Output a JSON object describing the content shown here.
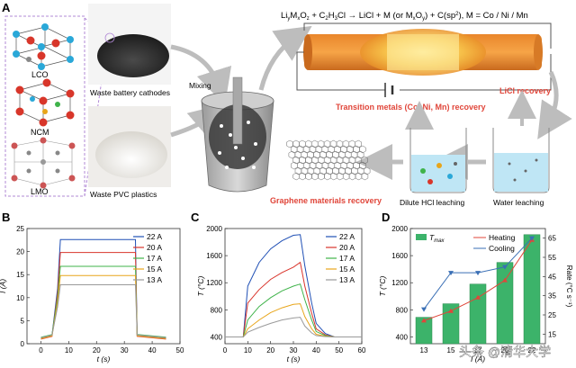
{
  "panel_letters": {
    "a": "A",
    "b": "B",
    "c": "C",
    "d": "D"
  },
  "reaction": {
    "lhs": "Li",
    "m_sub": "y",
    "o_sub": "z",
    "plus1": "+ C",
    "h_sub": "3",
    "cl_part": "Cl",
    "rhs": "LiCl + M (or M",
    "rhs_o": "O",
    "rhs_end": ") + C(sp",
    "sp2": "2",
    "metals": "), M = Co / Ni / Mn"
  },
  "structures": [
    "LCO",
    "NCM",
    "LMO"
  ],
  "captions": {
    "cathodes": "Waste battery cathodes",
    "pvc": "Waste PVC plastics",
    "mixing": "Mixing",
    "tm_recovery": "Transition metals (Co, Ni, Mn) recovery",
    "licl_recovery": "LiCl recovery",
    "graphene": "Graphene materials recovery",
    "hcl": "Dilute HCl leaching",
    "water": "Water leaching"
  },
  "colors": {
    "red_text": "#e0463a",
    "heating": "#e0463a",
    "cooling": "#3a6fb5",
    "bar": "#3cb36a"
  },
  "chart_data": [
    {
      "type": "line",
      "panel": "B",
      "xlabel": "t (s)",
      "ylabel": "I (A)",
      "xlim": [
        -5,
        50
      ],
      "ylim": [
        0,
        25
      ],
      "xticks": [
        0,
        10,
        20,
        30,
        40,
        50
      ],
      "yticks": [
        0,
        5,
        10,
        15,
        20,
        25
      ],
      "legend": "top-right",
      "series": [
        {
          "name": "22 A",
          "color": "#1f4fb5",
          "x": [
            0,
            4,
            6,
            7,
            34,
            34.6,
            45
          ],
          "y": [
            1.2,
            1.8,
            12,
            22.6,
            22.6,
            1.8,
            1.2
          ]
        },
        {
          "name": "20 A",
          "color": "#d9342b",
          "x": [
            0,
            4,
            6,
            7,
            34,
            34.6,
            45
          ],
          "y": [
            1.0,
            1.6,
            11,
            19.8,
            19.8,
            1.6,
            1.0
          ]
        },
        {
          "name": "17 A",
          "color": "#3fb34a",
          "x": [
            0,
            4,
            6,
            7,
            34,
            34.6,
            45
          ],
          "y": [
            1.4,
            2.0,
            10,
            16.8,
            16.8,
            2.0,
            1.4
          ]
        },
        {
          "name": "15 A",
          "color": "#e8a51a",
          "x": [
            0,
            4,
            6,
            7,
            34,
            34.6,
            45
          ],
          "y": [
            1.1,
            1.7,
            9,
            14.8,
            14.8,
            1.7,
            1.1
          ]
        },
        {
          "name": "13 A",
          "color": "#9a9a9a",
          "x": [
            0,
            4,
            6,
            7,
            34,
            34.6,
            45
          ],
          "y": [
            1.3,
            1.9,
            8,
            12.8,
            12.8,
            1.9,
            1.3
          ]
        }
      ]
    },
    {
      "type": "line",
      "panel": "C",
      "xlabel": "t (s)",
      "ylabel": "T (°C)",
      "xlim": [
        0,
        60
      ],
      "ylim": [
        300,
        2000
      ],
      "xticks": [
        0,
        10,
        20,
        30,
        40,
        50,
        60
      ],
      "yticks": [
        400,
        800,
        1200,
        1600,
        2000
      ],
      "legend": "top-right",
      "series": [
        {
          "name": "22 A",
          "color": "#1f4fb5",
          "x": [
            0,
            8,
            10,
            15,
            20,
            25,
            30,
            33,
            35,
            38,
            40,
            44,
            48,
            60
          ],
          "y": [
            400,
            400,
            1150,
            1500,
            1700,
            1820,
            1900,
            1910,
            1450,
            900,
            600,
            450,
            400,
            400
          ]
        },
        {
          "name": "20 A",
          "color": "#d9342b",
          "x": [
            0,
            8,
            10,
            15,
            20,
            25,
            30,
            33,
            35,
            38,
            40,
            44,
            48,
            60
          ],
          "y": [
            400,
            400,
            900,
            1100,
            1250,
            1350,
            1430,
            1500,
            1150,
            750,
            520,
            430,
            400,
            400
          ]
        },
        {
          "name": "17 A",
          "color": "#3fb34a",
          "x": [
            0,
            8,
            10,
            15,
            20,
            25,
            30,
            33,
            35,
            38,
            40,
            44,
            48,
            60
          ],
          "y": [
            400,
            400,
            650,
            850,
            980,
            1080,
            1150,
            1180,
            950,
            650,
            480,
            420,
            400,
            400
          ]
        },
        {
          "name": "15 A",
          "color": "#e8a51a",
          "x": [
            0,
            8,
            10,
            15,
            20,
            25,
            30,
            33,
            35,
            38,
            40,
            44,
            48,
            60
          ],
          "y": [
            400,
            400,
            520,
            650,
            760,
            830,
            880,
            890,
            700,
            520,
            440,
            410,
            400,
            400
          ]
        },
        {
          "name": "13 A",
          "color": "#9a9a9a",
          "x": [
            0,
            8,
            10,
            15,
            20,
            25,
            30,
            33,
            35,
            38,
            40,
            44,
            48,
            60
          ],
          "y": [
            400,
            400,
            470,
            540,
            600,
            650,
            680,
            690,
            560,
            460,
            420,
            405,
            400,
            400
          ]
        }
      ]
    },
    {
      "type": "bar",
      "panel": "D",
      "xlabel": "I (A)",
      "ylabel": "T (°C)",
      "y2label": "Rate (°C s⁻¹)",
      "categories": [
        "13",
        "15",
        "17",
        "20",
        "22"
      ],
      "ylim": [
        300,
        2000
      ],
      "yticks": [
        400,
        800,
        1200,
        1600,
        2000
      ],
      "y2lim": [
        10,
        70
      ],
      "y2ticks": [
        15,
        25,
        35,
        45,
        55,
        65
      ],
      "legend": "top",
      "series": [
        {
          "name": "T_max",
          "kind": "bar",
          "color": "#3cb36a",
          "values": [
            690,
            890,
            1180,
            1500,
            1910
          ]
        },
        {
          "name": "Heating",
          "kind": "line",
          "axis": "right",
          "color": "#e0463a",
          "values": [
            22,
            27,
            34,
            43,
            64
          ]
        },
        {
          "name": "Cooling",
          "kind": "line",
          "axis": "right",
          "color": "#3a6fb5",
          "values": [
            28,
            47,
            47,
            50,
            65
          ]
        }
      ]
    }
  ],
  "watermark": "头条 @清华大学"
}
